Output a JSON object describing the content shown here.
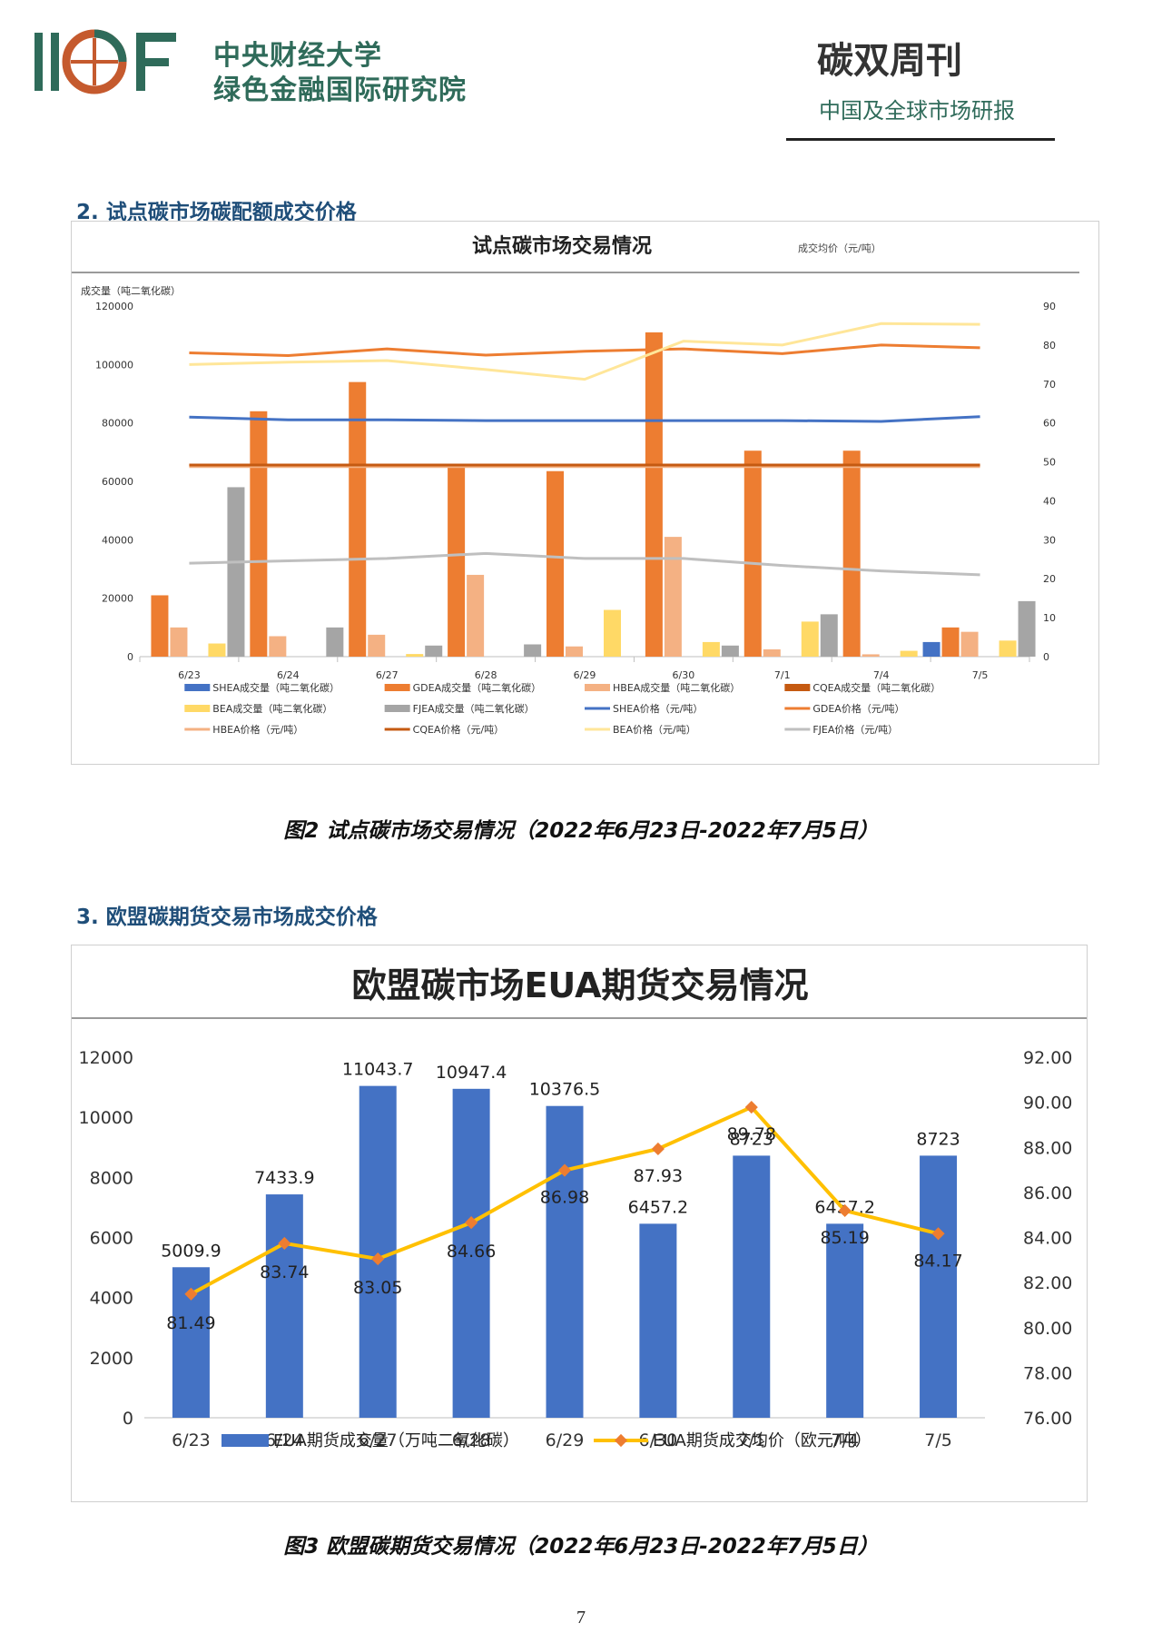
{
  "header": {
    "logo_text": "IIGF",
    "institution_line1": "中央财经大学",
    "institution_line2": "绿色金融国际研究院",
    "publication_title": "碳双周刊",
    "publication_subtitle": "中国及全球市场研报"
  },
  "section2": {
    "heading": "2. 试点碳市场碳配额成交价格",
    "caption": "图2 试点碳市场交易情况（2022年6月23日-2022年7月5日）"
  },
  "section3": {
    "heading": "3. 欧盟碳期货交易市场成交价格",
    "caption": "图3 欧盟碳期货交易情况（2022年6月23日-2022年7月5日）"
  },
  "page_number": "7",
  "chart_data": [
    {
      "type": "bar",
      "title": "试点碳市场交易情况",
      "subtitle": "成交均价（元/吨）",
      "ylabel": "成交量（吨二氧化碳）",
      "categories": [
        "6/23",
        "6/24",
        "6/27",
        "6/28",
        "6/29",
        "6/30",
        "7/1",
        "7/4",
        "7/5"
      ],
      "ylim": [
        0,
        120000
      ],
      "y_ticks": [
        "0",
        "20000",
        "40000",
        "60000",
        "80000",
        "100000",
        "120000"
      ],
      "y2lim": [
        0,
        90
      ],
      "y2_ticks": [
        "0",
        "10",
        "20",
        "30",
        "40",
        "50",
        "60",
        "70",
        "80",
        "90"
      ],
      "legend_position": "bottom",
      "series": [
        {
          "name": "SHEA成交量（吨二氧化碳）",
          "kind": "bar",
          "axis": "left",
          "color": "#4472c4",
          "values": [
            0,
            0,
            0,
            0,
            0,
            0,
            0,
            0,
            5000
          ]
        },
        {
          "name": "GDEA成交量（吨二氧化碳）",
          "kind": "bar",
          "axis": "left",
          "color": "#ed7d31",
          "values": [
            21000,
            84000,
            94000,
            65000,
            63500,
            111000,
            70500,
            70500,
            10000
          ]
        },
        {
          "name": "HBEA成交量（吨二氧化碳）",
          "kind": "bar",
          "axis": "left",
          "color": "#f4b183",
          "values": [
            10000,
            7000,
            7500,
            28000,
            3500,
            41000,
            2500,
            800,
            8500
          ]
        },
        {
          "name": "CQEA成交量（吨二氧化碳）",
          "kind": "bar",
          "axis": "left",
          "color": "#c55a11",
          "values": [
            0,
            0,
            0,
            0,
            0,
            0,
            0,
            0,
            0
          ]
        },
        {
          "name": "BEA成交量（吨二氧化碳）",
          "kind": "bar",
          "axis": "left",
          "color": "#ffd966",
          "values": [
            4500,
            0,
            900,
            0,
            16000,
            5000,
            12000,
            2000,
            5500
          ]
        },
        {
          "name": "FJEA成交量（吨二氧化碳）",
          "kind": "bar",
          "axis": "left",
          "color": "#a5a5a5",
          "values": [
            58000,
            10000,
            3800,
            4200,
            0,
            3800,
            14500,
            0,
            19000
          ]
        },
        {
          "name": "SHEA价格（元/吨）",
          "kind": "line",
          "axis": "right",
          "color": "#4472c4",
          "values": [
            61.5,
            60.8,
            60.8,
            60.6,
            60.6,
            60.6,
            60.6,
            60.4,
            61.6
          ]
        },
        {
          "name": "GDEA价格（元/吨）",
          "kind": "line",
          "axis": "right",
          "color": "#ed7d31",
          "values": [
            78,
            77.3,
            79,
            77.4,
            78.4,
            79,
            77.8,
            80,
            79.3
          ]
        },
        {
          "name": "HBEA价格（元/吨）",
          "kind": "line",
          "axis": "right",
          "color": "#f4b183",
          "values": [
            48.8,
            48.8,
            48.8,
            48.8,
            48.8,
            48.8,
            48.8,
            48.8,
            48.8
          ]
        },
        {
          "name": "CQEA价格（元/吨）",
          "kind": "line",
          "axis": "right",
          "color": "#c55a11",
          "values": [
            49.2,
            49.2,
            49.2,
            49.2,
            49.2,
            49.2,
            49.2,
            49.2,
            49.2
          ]
        },
        {
          "name": "BEA价格（元/吨）",
          "kind": "line",
          "axis": "right",
          "color": "#ffe699",
          "values": [
            75,
            75.6,
            76,
            73.7,
            71.2,
            81,
            80,
            85.5,
            85.3
          ]
        },
        {
          "name": "FJEA价格（元/吨）",
          "kind": "line",
          "axis": "right",
          "color": "#bfbfbf",
          "values": [
            24,
            24.6,
            25.2,
            26.5,
            25.2,
            25.2,
            23.4,
            22,
            21
          ]
        }
      ]
    },
    {
      "type": "bar",
      "title": "欧盟碳市场EUA期货交易情况",
      "categories": [
        "6/23",
        "6/24",
        "6/27",
        "6/28",
        "6/29",
        "6/30",
        "7/1",
        "7/4",
        "7/5"
      ],
      "ylim": [
        0,
        12000
      ],
      "y_ticks": [
        "0",
        "2000",
        "4000",
        "6000",
        "8000",
        "10000",
        "12000"
      ],
      "y2lim": [
        76,
        92
      ],
      "y2_ticks": [
        "76.00",
        "78.00",
        "80.00",
        "82.00",
        "84.00",
        "86.00",
        "88.00",
        "90.00",
        "92.00"
      ],
      "legend_position": "bottom",
      "series": [
        {
          "name": "EUA期货成交量（万吨二氧化碳）",
          "kind": "bar",
          "axis": "left",
          "color": "#4472c4",
          "values": [
            5009.9,
            7433.9,
            11043.7,
            10947.4,
            10376.5,
            6457.2,
            8723,
            6457.2,
            8723
          ],
          "labels": [
            "5009.9",
            "7433.9",
            "11043.7",
            "10947.4",
            "10376.5",
            "6457.2",
            "8723",
            "6457.2",
            "8723"
          ]
        },
        {
          "name": "EUA期货成交均价（欧元/吨）",
          "kind": "line",
          "axis": "right",
          "color": "#ffc000",
          "marker_color": "#ed7d31",
          "values": [
            81.49,
            83.74,
            83.05,
            84.66,
            86.98,
            87.93,
            89.78,
            85.19,
            84.17
          ],
          "labels": [
            "81.49",
            "83.74",
            "83.05",
            "84.66",
            "86.98",
            "87.93",
            "89.78",
            "85.19",
            "84.17"
          ]
        }
      ]
    }
  ]
}
